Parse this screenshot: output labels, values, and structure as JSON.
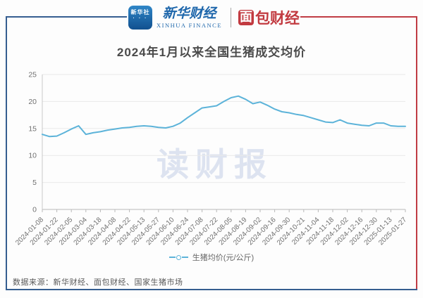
{
  "header": {
    "xinhua_icon_text": "新华社",
    "xinhua_icon_dots": "· · ·",
    "xinhua_name": "新华财经",
    "xinhua_sub": "XINHUA FINANCE",
    "bread_first_char": "面",
    "bread_rest": "包财经"
  },
  "title": "2024年1月以来全国生猪成交均价",
  "watermark": "读财报",
  "legend": {
    "label": "生猪均价(元/公斤)"
  },
  "footer": {
    "source": "数据来源：新华财经、面包财经、国家生猪市场"
  },
  "colors": {
    "line": "#5cb3d9",
    "frame_blue": "#355e90",
    "frame_red": "#c03c44",
    "xinhua_blue": "#1d66ab",
    "bread_red": "#c23a40",
    "title_text": "#4a4a4a",
    "axis_text": "#707070",
    "gridline": "#e9e9e9",
    "watermark": "#dde3f0"
  },
  "chart_data": {
    "type": "line",
    "title": "2024年1月以来全国生猪成交均价",
    "series_name": "生猪均价(元/公斤)",
    "xlabel": "",
    "ylabel": "",
    "ylim": [
      0,
      25
    ],
    "y_ticks": [
      0,
      5,
      10,
      15,
      20,
      25
    ],
    "grid": true,
    "legend_position": "bottom",
    "line_color": "#5cb3d9",
    "x_tick_labels": [
      "2024-01-08",
      "2024-01-22",
      "2024-02-05",
      "2024-03-04",
      "2024-03-18",
      "2024-04-08",
      "2024-04-22",
      "2024-05-13",
      "2024-05-27",
      "2024-06-10",
      "2024-06-24",
      "2024-07-08",
      "2024-07-22",
      "2024-08-05",
      "2024-08-19",
      "2024-09-02",
      "2024-09-16",
      "2024-09-30",
      "2024-10-21",
      "2024-11-04",
      "2024-11-18",
      "2024-12-02",
      "2024-12-16",
      "2024-12-30",
      "2025-01-13",
      "2025-01-27"
    ],
    "points_per_label_interval": 2,
    "values": [
      13.9,
      13.5,
      13.6,
      14.2,
      14.9,
      15.5,
      13.9,
      14.2,
      14.4,
      14.7,
      14.9,
      15.1,
      15.2,
      15.4,
      15.5,
      15.4,
      15.2,
      15.1,
      15.4,
      16.0,
      17.0,
      17.9,
      18.8,
      19.0,
      19.2,
      20.0,
      20.7,
      21.0,
      20.4,
      19.6,
      19.9,
      19.3,
      18.6,
      18.1,
      17.9,
      17.6,
      17.4,
      17.0,
      16.6,
      16.2,
      16.1,
      16.6,
      16.0,
      15.8,
      15.6,
      15.5,
      16.0,
      16.0,
      15.5,
      15.4,
      15.4
    ]
  }
}
